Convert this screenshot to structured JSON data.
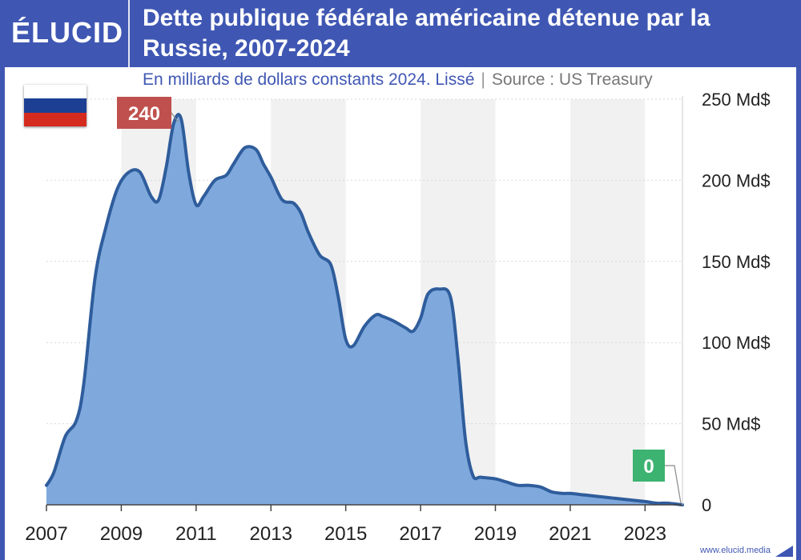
{
  "header": {
    "logo": "ÉLUCID",
    "title": "Dette publique fédérale américaine détenue par la Russie, 2007-2024"
  },
  "subtitle": {
    "text": "En milliards de dollars constants 2024. Lissé",
    "separator": "|",
    "source": "Source : US Treasury"
  },
  "flag": {
    "colors": [
      "#ffffff",
      "#1c3f94",
      "#d52b1e"
    ]
  },
  "footer": {
    "url": "www.elucid.media"
  },
  "colors": {
    "brand": "#3f57b3",
    "line": "#2f5d9c",
    "fill": "#7fa9dd",
    "max_label": "#c0504d",
    "min_label": "#3cb371"
  },
  "chart_data": {
    "type": "area",
    "x": [
      2007.0,
      2007.2,
      2007.5,
      2007.8,
      2008.0,
      2008.3,
      2008.6,
      2008.9,
      2009.2,
      2009.5,
      2009.8,
      2010.0,
      2010.2,
      2010.4,
      2010.6,
      2010.8,
      2011.0,
      2011.2,
      2011.5,
      2011.8,
      2012.0,
      2012.3,
      2012.6,
      2012.8,
      2013.0,
      2013.3,
      2013.6,
      2013.8,
      2014.0,
      2014.3,
      2014.6,
      2014.8,
      2015.0,
      2015.2,
      2015.5,
      2015.8,
      2016.0,
      2016.3,
      2016.6,
      2016.8,
      2017.0,
      2017.2,
      2017.5,
      2017.8,
      2018.0,
      2018.2,
      2018.4,
      2018.6,
      2019.0,
      2019.3,
      2019.6,
      2019.9,
      2020.2,
      2020.5,
      2020.8,
      2021.0,
      2021.4,
      2021.8,
      2022.2,
      2022.6,
      2023.0,
      2023.3,
      2023.6,
      2024.0
    ],
    "values": [
      12,
      20,
      42,
      52,
      75,
      140,
      172,
      195,
      205,
      205,
      190,
      188,
      208,
      235,
      238,
      205,
      185,
      190,
      200,
      203,
      210,
      220,
      219,
      210,
      202,
      188,
      186,
      180,
      168,
      154,
      148,
      128,
      102,
      98,
      110,
      117,
      116,
      113,
      109,
      107,
      115,
      130,
      133,
      128,
      90,
      40,
      18,
      17,
      16,
      14,
      12,
      12,
      11,
      8,
      7,
      7,
      6,
      5,
      4,
      3,
      2,
      1,
      1,
      0
    ],
    "xlim": [
      2007,
      2024
    ],
    "ylim": [
      0,
      250
    ],
    "yticks": [
      0,
      50,
      100,
      150,
      200,
      250
    ],
    "ytick_labels": [
      "0",
      "50 Md$",
      "100 Md$",
      "150 Md$",
      "200 Md$",
      "250 Md$"
    ],
    "xticks": [
      2007,
      2009,
      2011,
      2013,
      2015,
      2017,
      2019,
      2021,
      2023
    ],
    "xtick_labels": [
      "2007",
      "2009",
      "2011",
      "2013",
      "2015",
      "2017",
      "2019",
      "2021",
      "2023"
    ],
    "annotations": [
      {
        "label": "240",
        "x": 2010.6,
        "y": 238,
        "kind": "max"
      },
      {
        "label": "0",
        "x": 2024.0,
        "y": 0,
        "kind": "min"
      }
    ],
    "grid": true,
    "shaded_bands": [
      [
        2009,
        2011
      ],
      [
        2013,
        2015
      ],
      [
        2017,
        2019
      ],
      [
        2021,
        2023
      ]
    ]
  }
}
